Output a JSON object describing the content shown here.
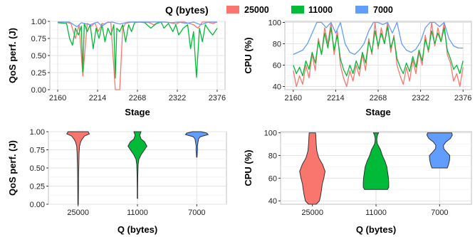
{
  "chart_data": [
    {
      "type": "line",
      "ylabel": "QoS perf. (J)",
      "xlabel": "Stage",
      "xlim": [
        2160,
        2376
      ],
      "ylim": [
        0,
        1
      ],
      "xticks": [
        2160,
        2214,
        2268,
        2322,
        2376
      ],
      "yticks": [
        0.0,
        0.25,
        0.5,
        0.75,
        1.0
      ],
      "ytick_labels": [
        "0.00",
        "0.25",
        "0.50",
        "0.75",
        "1.00"
      ],
      "grid": true,
      "series": [
        {
          "name": "25000",
          "color": "#F8766D",
          "x": [
            2160,
            2170,
            2178,
            2184,
            2189,
            2194,
            2200,
            2206,
            2210,
            2215,
            2220,
            2224,
            2228,
            2232,
            2238,
            2244,
            2248,
            2252,
            2256,
            2262,
            2268,
            2276,
            2284,
            2290,
            2298,
            2305,
            2312,
            2320,
            2326,
            2332,
            2338,
            2344,
            2350,
            2356,
            2362,
            2366,
            2370,
            2376
          ],
          "y": [
            0.99,
            0.99,
            0.97,
            0.75,
            0.95,
            0.2,
            0.97,
            0.93,
            0.98,
            0.85,
            0.97,
            0.96,
            0.99,
            0.98,
            0.0,
            0.0,
            0.9,
            0.97,
            0.98,
            0.99,
            0.99,
            0.99,
            0.98,
            0.95,
            0.99,
            0.99,
            0.98,
            0.96,
            0.99,
            0.99,
            0.97,
            0.95,
            0.9,
            0.99,
            0.99,
            0.98,
            0.97,
            0.99
          ]
        },
        {
          "name": "11000",
          "color": "#00BA38",
          "x": [
            2160,
            2172,
            2176,
            2180,
            2184,
            2188,
            2192,
            2194,
            2196,
            2200,
            2204,
            2208,
            2212,
            2216,
            2220,
            2224,
            2228,
            2232,
            2236,
            2238,
            2240,
            2244,
            2248,
            2252,
            2256,
            2260,
            2264,
            2270,
            2278,
            2286,
            2294,
            2300,
            2304,
            2310,
            2316,
            2320,
            2324,
            2330,
            2336,
            2340,
            2344,
            2348,
            2352,
            2356,
            2360,
            2366,
            2370,
            2376
          ],
          "y": [
            0.98,
            0.97,
            0.75,
            0.65,
            0.9,
            0.8,
            0.93,
            0.26,
            0.97,
            0.85,
            0.95,
            0.6,
            0.9,
            0.75,
            0.95,
            0.7,
            0.9,
            0.8,
            0.95,
            0.17,
            0.9,
            0.85,
            0.95,
            0.7,
            0.95,
            0.85,
            0.98,
            0.99,
            0.98,
            0.9,
            0.97,
            0.99,
            0.9,
            0.97,
            0.85,
            0.95,
            0.8,
            0.9,
            0.95,
            0.6,
            0.85,
            0.18,
            0.9,
            0.7,
            0.95,
            0.85,
            0.8,
            0.9
          ]
        },
        {
          "name": "7000",
          "color": "#619CFF",
          "x": [
            2160,
            2176,
            2186,
            2192,
            2204,
            2214,
            2220,
            2226,
            2234,
            2244,
            2256,
            2266,
            2276,
            2290,
            2304,
            2314,
            2324,
            2334,
            2344,
            2354,
            2364,
            2376
          ],
          "y": [
            0.99,
            0.99,
            0.92,
            0.98,
            0.95,
            0.99,
            0.93,
            0.98,
            0.99,
            0.96,
            0.99,
            0.99,
            0.99,
            0.99,
            0.99,
            0.98,
            0.99,
            0.97,
            0.99,
            0.95,
            0.99,
            0.99
          ]
        }
      ]
    },
    {
      "type": "line",
      "ylabel": "CPU (%)",
      "xlabel": "Stage",
      "xlim": [
        2160,
        2376
      ],
      "ylim": [
        37,
        101
      ],
      "xticks": [
        2160,
        2214,
        2268,
        2322,
        2376
      ],
      "yticks": [
        40,
        60,
        80,
        100
      ],
      "ytick_labels": [
        "40",
        "60",
        "80",
        "100"
      ],
      "grid": true,
      "series": [
        {
          "name": "25000",
          "color": "#F8766D",
          "x": [
            2160,
            2164,
            2168,
            2172,
            2176,
            2180,
            2184,
            2188,
            2192,
            2196,
            2200,
            2204,
            2208,
            2212,
            2216,
            2220,
            2224,
            2228,
            2232,
            2236,
            2240,
            2244,
            2248,
            2252,
            2256,
            2260,
            2264,
            2268,
            2272,
            2276,
            2280,
            2284,
            2288,
            2292,
            2296,
            2300,
            2304,
            2308,
            2312,
            2316,
            2320,
            2324,
            2328,
            2332,
            2336,
            2340,
            2344,
            2348,
            2352,
            2356,
            2360,
            2364,
            2368,
            2372,
            2376
          ],
          "y": [
            55,
            40,
            50,
            42,
            60,
            48,
            70,
            55,
            85,
            70,
            95,
            80,
            100,
            70,
            92,
            60,
            48,
            40,
            55,
            45,
            60,
            50,
            70,
            55,
            85,
            70,
            100,
            75,
            95,
            80,
            100,
            72,
            88,
            60,
            50,
            42,
            58,
            45,
            65,
            52,
            72,
            60,
            88,
            72,
            100,
            78,
            95,
            82,
            100,
            70,
            62,
            45,
            52,
            40,
            58
          ]
        },
        {
          "name": "11000",
          "color": "#00BA38",
          "x": [
            2160,
            2164,
            2168,
            2172,
            2176,
            2180,
            2184,
            2188,
            2192,
            2196,
            2200,
            2204,
            2208,
            2212,
            2216,
            2220,
            2224,
            2228,
            2232,
            2236,
            2240,
            2244,
            2248,
            2252,
            2256,
            2260,
            2264,
            2268,
            2272,
            2276,
            2280,
            2284,
            2288,
            2292,
            2296,
            2300,
            2304,
            2308,
            2312,
            2316,
            2320,
            2324,
            2328,
            2332,
            2336,
            2340,
            2344,
            2348,
            2352,
            2356,
            2360,
            2364,
            2368,
            2372,
            2376
          ],
          "y": [
            60,
            52,
            58,
            50,
            64,
            56,
            72,
            62,
            82,
            70,
            90,
            76,
            95,
            74,
            88,
            66,
            56,
            50,
            60,
            52,
            64,
            56,
            72,
            62,
            82,
            72,
            92,
            78,
            90,
            80,
            96,
            76,
            86,
            66,
            58,
            52,
            62,
            54,
            68,
            58,
            74,
            64,
            84,
            74,
            92,
            80,
            90,
            82,
            95,
            74,
            66,
            56,
            60,
            52,
            64
          ]
        },
        {
          "name": "7000",
          "color": "#619CFF",
          "x": [
            2160,
            2166,
            2172,
            2178,
            2184,
            2190,
            2196,
            2202,
            2208,
            2214,
            2220,
            2226,
            2232,
            2238,
            2244,
            2250,
            2256,
            2262,
            2268,
            2274,
            2280,
            2286,
            2292,
            2298,
            2304,
            2310,
            2316,
            2322,
            2328,
            2334,
            2340,
            2346,
            2352,
            2358,
            2364,
            2370,
            2376
          ],
          "y": [
            70,
            72,
            74,
            80,
            90,
            100,
            100,
            95,
            100,
            90,
            100,
            80,
            72,
            70,
            74,
            80,
            92,
            100,
            100,
            98,
            100,
            90,
            100,
            80,
            74,
            72,
            75,
            82,
            95,
            100,
            100,
            96,
            100,
            85,
            78,
            76,
            76
          ]
        }
      ]
    },
    {
      "type": "violin",
      "ylabel": "QoS perf. (J)",
      "xlabel": "Q (bytes)",
      "categories": [
        "25000",
        "11000",
        "7000"
      ],
      "ylim": [
        0,
        1
      ],
      "yticks": [
        0.0,
        0.25,
        0.5,
        0.75,
        1.0
      ],
      "ytick_labels": [
        "0.00",
        "0.25",
        "0.50",
        "0.75",
        "1.00"
      ],
      "grid": true,
      "series": [
        {
          "name": "25000",
          "color": "#F8766D",
          "y": [
            0.0,
            0.05,
            0.2,
            0.4,
            0.55,
            0.7,
            0.8,
            0.86,
            0.9,
            0.94,
            0.97,
            1.0
          ],
          "width": [
            0.02,
            0.02,
            0.03,
            0.04,
            0.06,
            0.08,
            0.12,
            0.22,
            0.35,
            0.55,
            0.95,
            0.85
          ]
        },
        {
          "name": "11000",
          "color": "#00BA38",
          "y": [
            0.08,
            0.2,
            0.4,
            0.55,
            0.62,
            0.68,
            0.74,
            0.8,
            0.86,
            0.9,
            0.95,
            1.0
          ],
          "width": [
            0.02,
            0.02,
            0.03,
            0.06,
            0.12,
            0.3,
            0.55,
            0.8,
            0.6,
            0.3,
            0.2,
            0.3
          ]
        },
        {
          "name": "7000",
          "color": "#619CFF",
          "y": [
            0.65,
            0.7,
            0.75,
            0.8,
            0.85,
            0.9,
            0.93,
            0.96,
            0.98,
            1.0
          ],
          "width": [
            0.02,
            0.04,
            0.06,
            0.05,
            0.1,
            0.15,
            0.3,
            0.95,
            0.85,
            0.35
          ]
        }
      ]
    },
    {
      "type": "violin",
      "ylabel": "CPU (%)",
      "xlabel": "Q (bytes)",
      "categories": [
        "25000",
        "11000",
        "7000"
      ],
      "ylim": [
        37,
        101
      ],
      "yticks": [
        40,
        60,
        80,
        100
      ],
      "ytick_labels": [
        "40",
        "60",
        "80",
        "100"
      ],
      "grid": true,
      "series": [
        {
          "name": "25000",
          "color": "#F8766D",
          "y": [
            37,
            40,
            45,
            50,
            55,
            60,
            66,
            72,
            78,
            84,
            90,
            95,
            100
          ],
          "width": [
            0.3,
            0.55,
            0.65,
            0.72,
            0.78,
            0.9,
            1.0,
            0.8,
            0.5,
            0.35,
            0.3,
            0.28,
            0.25
          ]
        },
        {
          "name": "11000",
          "color": "#00BA38",
          "y": [
            50,
            52,
            56,
            60,
            65,
            70,
            75,
            80,
            85,
            90,
            92,
            95,
            98,
            100
          ],
          "width": [
            0.9,
            1.0,
            1.0,
            0.98,
            0.92,
            0.85,
            0.7,
            0.5,
            0.35,
            0.12,
            0.08,
            0.06,
            0.12,
            0.2
          ]
        },
        {
          "name": "7000",
          "color": "#619CFF",
          "y": [
            69,
            72,
            76,
            80,
            83,
            86,
            89,
            92,
            95,
            98,
            100
          ],
          "width": [
            0.6,
            0.7,
            0.78,
            0.8,
            0.55,
            0.32,
            0.3,
            0.5,
            0.85,
            1.0,
            0.95
          ]
        }
      ]
    }
  ],
  "legend": {
    "title": "Q (bytes)",
    "placement": "top",
    "items": [
      {
        "label": "25000",
        "color": "#F8766D"
      },
      {
        "label": "11000",
        "color": "#00BA38"
      },
      {
        "label": "7000",
        "color": "#619CFF"
      }
    ]
  }
}
